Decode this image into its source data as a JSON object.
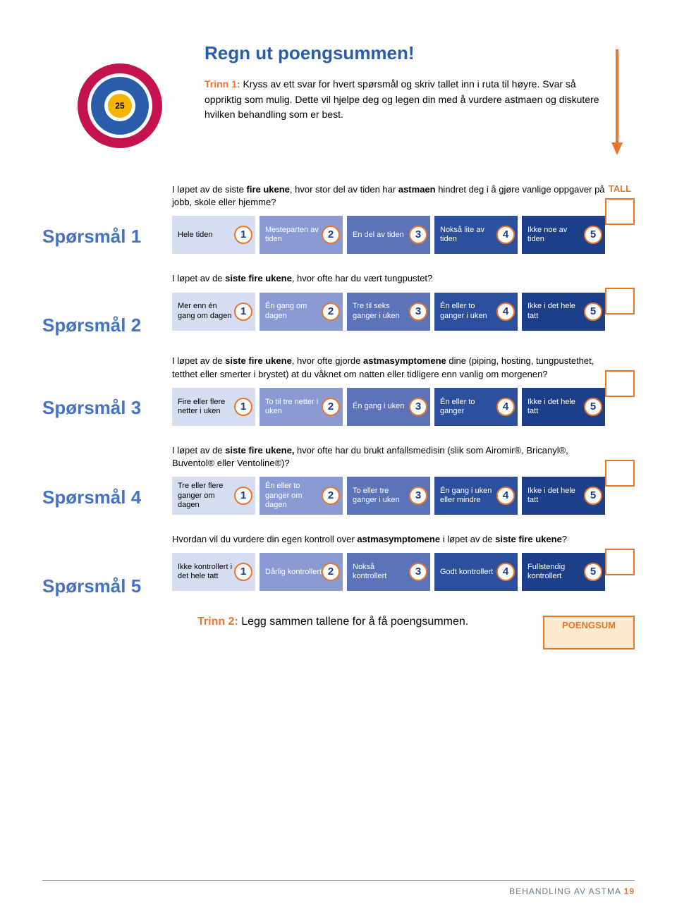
{
  "colors": {
    "accent_orange": "#e8762d",
    "title_blue": "#2a5caa",
    "label_blue": "#4472c4",
    "opt_colors": [
      "#d6ddf0",
      "#8a9bd4",
      "#5c73ba",
      "#2d509e",
      "#1d3f8a"
    ],
    "target_outer": "#c4124f",
    "target_mid_w": "#ffffff",
    "target_mid": "#2a5caa",
    "target_inner_w": "#ffffff",
    "target_center": "#f4b400",
    "poeng_bg": "#fde8d0"
  },
  "header": {
    "title": "Regn ut poengsummen!",
    "trinn1_label": "Trinn 1:",
    "trinn1_text": " Kryss av ett svar for hvert spørsmål og skriv tallet inn i ruta til høyre. Svar så oppriktig som mulig. Dette vil hjelpe deg og legen din med å vurdere astmaen og diskutere hvilken behandling som er best.",
    "target_number": "25"
  },
  "tall_label": "TALL",
  "questions": [
    {
      "label": "Spørsmål 1",
      "text_pre": "I løpet av de siste ",
      "text_bold1": "fire ukene",
      "text_mid": ", hvor stor del av tiden har ",
      "text_bold2": "astmaen",
      "text_post": " hindret deg i å gjøre vanlige oppgaver på jobb, skole eller hjemme?",
      "options": [
        "Hele tiden",
        "Mesteparten av tiden",
        "En del av tiden",
        "Nokså lite av tiden",
        "Ikke noe av tiden"
      ]
    },
    {
      "label": "Spørsmål 2",
      "text_pre": "I løpet av de ",
      "text_bold1": "siste fire ukene",
      "text_mid": ", hvor ofte har du vært tungpustet?",
      "text_bold2": "",
      "text_post": "",
      "options": [
        "Mer enn én gang om dagen",
        "Én gang om dagen",
        "Tre til seks ganger i uken",
        "Én eller to ganger i uken",
        "Ikke i det hele tatt"
      ]
    },
    {
      "label": "Spørsmål 3",
      "text_pre": "I løpet av de ",
      "text_bold1": "siste fire ukene",
      "text_mid": ", hvor ofte gjorde ",
      "text_bold2": "astmasymptomene",
      "text_post": " dine (piping, hosting, tungpustethet, tetthet eller smerter i brystet) at du våknet om natten eller tidligere enn vanlig om morgenen?",
      "options": [
        "Fire eller flere netter i uken",
        "To til tre netter i uken",
        "Én gang i uken",
        "Én eller to ganger",
        "Ikke i det hele tatt"
      ]
    },
    {
      "label": "Spørsmål 4",
      "text_pre": "I løpet av de ",
      "text_bold1": "siste fire ukene,",
      "text_mid": " hvor ofte har du brukt anfallsmedisin (slik som Airomir®, Bricanyl®, Buventol® eller Ventoline®)?",
      "text_bold2": "",
      "text_post": "",
      "options": [
        "Tre eller flere ganger om dagen",
        "Én eller to ganger om dagen",
        "To eller tre ganger i uken",
        "Én gang i uken eller mindre",
        "Ikke i det hele tatt"
      ]
    },
    {
      "label": "Spørsmål 5",
      "text_pre": "Hvordan vil du vurdere din egen kontroll over ",
      "text_bold1": "astmasymptomene",
      "text_mid": " i løpet av de ",
      "text_bold2": "siste fire ukene",
      "text_post": "?",
      "options": [
        "Ikke kontrollert i det hele tatt",
        "Dårlig kontrollert",
        "Nokså kontrollert",
        "Godt kontrollert",
        "Fullstendig kontrollert"
      ]
    }
  ],
  "trinn2": {
    "label": "Trinn 2:",
    "text": " Legg sammen tallene for å få poengsummen.",
    "poeng_label": "POENGSUM"
  },
  "footer": {
    "text": "BEHANDLING AV ASTMA",
    "page": "19"
  }
}
